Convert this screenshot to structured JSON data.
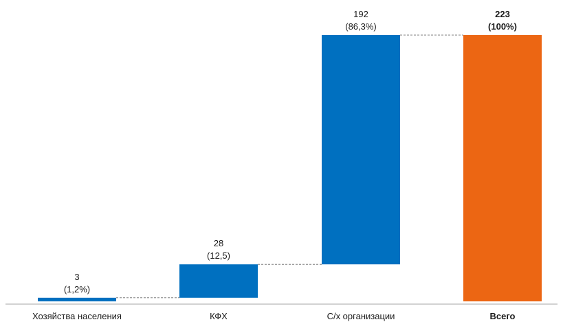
{
  "chart_data": {
    "type": "bar",
    "subtype": "waterfall",
    "categories": [
      "Хозяйства населения",
      "КФХ",
      "С/х организации",
      "Всего"
    ],
    "values": [
      3,
      28,
      192,
      223
    ],
    "value_labels": [
      "3",
      "28",
      "192",
      "223"
    ],
    "share_labels": [
      "(1,2%)",
      "(12,5)",
      "(86,3%)",
      "(100%)"
    ],
    "total_index": 3,
    "ylim": [
      0,
      223
    ],
    "grid": false,
    "connectors": true,
    "colors": {
      "increment": "#0070c0",
      "total": "#ec6613",
      "connector": "#7f7f7f",
      "axis": "#a6a6a6"
    }
  }
}
